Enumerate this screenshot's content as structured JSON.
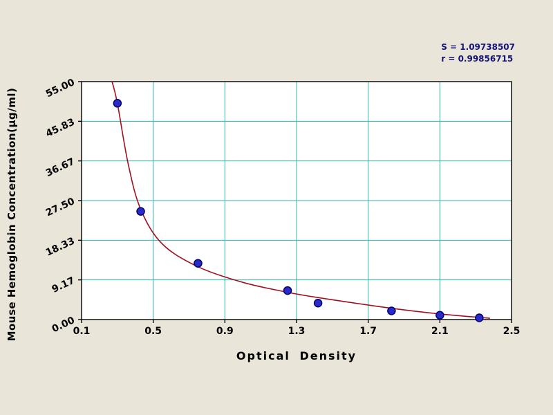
{
  "chart_data": {
    "type": "scatter",
    "title": "",
    "xlabel": "Optical Density",
    "ylabel": "Mouse Hemoglobin Concentration(μg/ml)",
    "xlim": [
      0.1,
      2.5
    ],
    "ylim": [
      0,
      55
    ],
    "x_tick_labels": [
      "0.1",
      "0.5",
      "0.9",
      "1.3",
      "1.7",
      "2.1",
      "2.5"
    ],
    "y_tick_labels": [
      "0.00",
      "9.17",
      "18.33",
      "27.50",
      "36.67",
      "45.83",
      "55.00"
    ],
    "grid": true,
    "points": [
      {
        "x": 0.3,
        "y": 50.0
      },
      {
        "x": 0.43,
        "y": 25.0
      },
      {
        "x": 0.75,
        "y": 13.0
      },
      {
        "x": 1.25,
        "y": 6.7
      },
      {
        "x": 1.42,
        "y": 3.8
      },
      {
        "x": 1.83,
        "y": 2.0
      },
      {
        "x": 2.1,
        "y": 1.0
      },
      {
        "x": 2.32,
        "y": 0.4
      }
    ],
    "curve": [
      {
        "x": 0.27,
        "y": 55.0
      },
      {
        "x": 0.3,
        "y": 50.0
      },
      {
        "x": 0.36,
        "y": 36.0
      },
      {
        "x": 0.43,
        "y": 25.5
      },
      {
        "x": 0.55,
        "y": 17.5
      },
      {
        "x": 0.75,
        "y": 12.2
      },
      {
        "x": 1.0,
        "y": 8.6
      },
      {
        "x": 1.25,
        "y": 6.3
      },
      {
        "x": 1.45,
        "y": 4.9
      },
      {
        "x": 1.83,
        "y": 2.6
      },
      {
        "x": 2.1,
        "y": 1.3
      },
      {
        "x": 2.38,
        "y": 0.3
      }
    ],
    "annotations": [
      "S = 1.09738507",
      "r = 0.99856715"
    ],
    "colors": {
      "background": "#e9e6d9",
      "plot_background": "#ffffff",
      "grid": "#2fb3ab",
      "curve": "#a01020",
      "point": "#2a2ac8",
      "point_edge": "#00006a",
      "stats_text": "#14147a",
      "axis": "#000000"
    }
  }
}
